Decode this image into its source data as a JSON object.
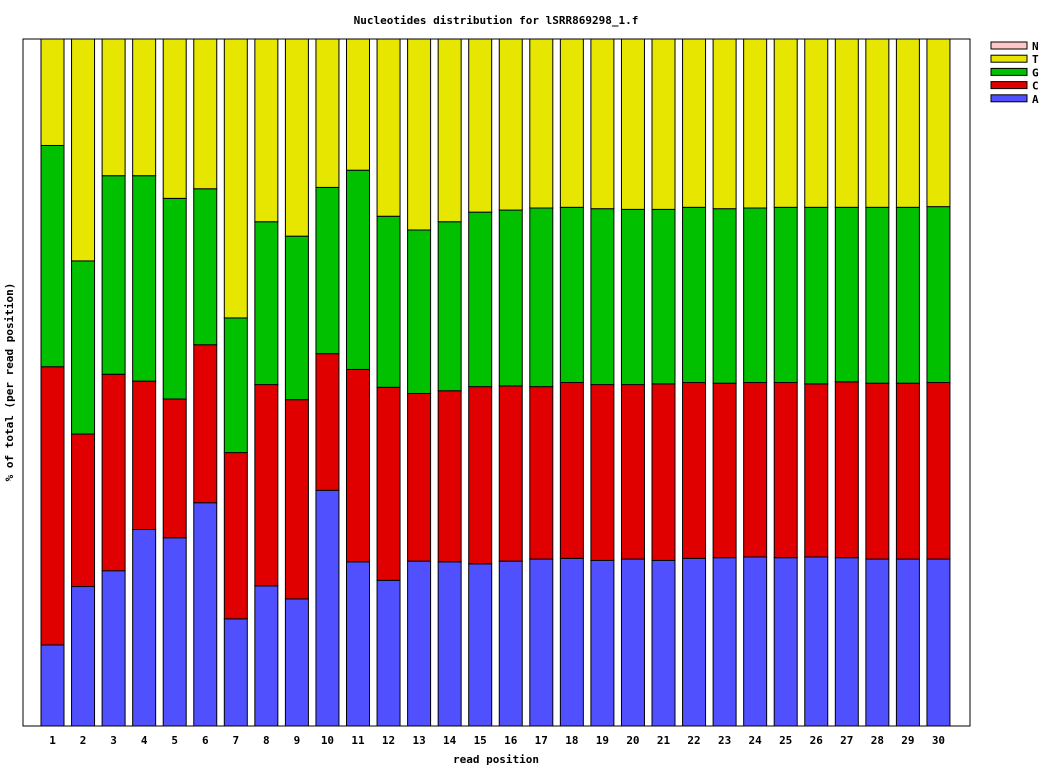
{
  "chart_data": {
    "type": "bar",
    "stacked": true,
    "title": "Nucleotides distribution for lSRR869298_1.f",
    "xlabel": "read position",
    "ylabel": "% of total (per read position)",
    "ylim": [
      0,
      100
    ],
    "grid": false,
    "legend_position": "top-right",
    "categories": [
      "1",
      "2",
      "3",
      "4",
      "5",
      "6",
      "7",
      "8",
      "9",
      "10",
      "11",
      "12",
      "13",
      "14",
      "15",
      "16",
      "17",
      "18",
      "19",
      "20",
      "21",
      "22",
      "23",
      "24",
      "25",
      "26",
      "27",
      "28",
      "29",
      "30"
    ],
    "series": [
      {
        "name": "A",
        "color": "#5050ff",
        "values": [
          11.8,
          20.3,
          22.6,
          28.6,
          27.4,
          32.5,
          15.6,
          20.4,
          18.5,
          34.3,
          23.9,
          21.2,
          24.0,
          23.9,
          23.6,
          24.0,
          24.3,
          24.4,
          24.1,
          24.3,
          24.1,
          24.4,
          24.5,
          24.6,
          24.5,
          24.6,
          24.5,
          24.3,
          24.3,
          24.3
        ]
      },
      {
        "name": "C",
        "color": "#e00000",
        "values": [
          40.5,
          22.2,
          28.6,
          21.6,
          20.2,
          23.0,
          24.2,
          29.3,
          29.0,
          19.9,
          28.0,
          28.1,
          24.4,
          24.9,
          25.8,
          25.5,
          25.1,
          25.6,
          25.6,
          25.4,
          25.7,
          25.6,
          25.4,
          25.4,
          25.5,
          25.2,
          25.6,
          25.6,
          25.6,
          25.7
        ]
      },
      {
        "name": "G",
        "color": "#00c000",
        "values": [
          32.2,
          25.2,
          28.9,
          29.9,
          29.2,
          22.7,
          19.6,
          23.7,
          23.8,
          24.2,
          29.0,
          24.9,
          23.8,
          24.6,
          25.4,
          25.6,
          26.0,
          25.5,
          25.6,
          25.5,
          25.4,
          25.5,
          25.4,
          25.4,
          25.5,
          25.7,
          25.4,
          25.6,
          25.6,
          25.6
        ]
      },
      {
        "name": "T",
        "color": "#e6e600",
        "values": [
          15.5,
          32.3,
          19.9,
          19.9,
          23.2,
          21.8,
          40.6,
          26.6,
          28.7,
          21.6,
          19.1,
          25.8,
          27.8,
          26.6,
          25.2,
          24.9,
          24.6,
          24.5,
          24.7,
          24.8,
          24.8,
          24.5,
          24.7,
          24.6,
          24.5,
          24.5,
          24.5,
          24.5,
          24.5,
          24.4
        ]
      },
      {
        "name": "N",
        "color": "#ffc8c8",
        "values": [
          0,
          0,
          0,
          0,
          0,
          0,
          0,
          0,
          0,
          0,
          0,
          0,
          0,
          0,
          0,
          0,
          0,
          0,
          0,
          0,
          0,
          0,
          0,
          0,
          0,
          0,
          0,
          0,
          0,
          0
        ]
      }
    ]
  }
}
